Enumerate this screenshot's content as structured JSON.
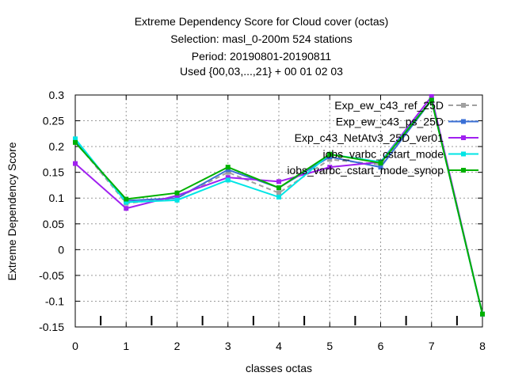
{
  "chart_data": {
    "type": "line",
    "title_lines": [
      "Extreme Dependency Score  for Cloud cover (octas)",
      "Selection: masl_0-200m    524 stations",
      "Period: 20190801-20190811",
      "Used {00,03,...,21} + 00 01 02 03"
    ],
    "xlabel": "classes octas",
    "ylabel": "Extreme Dependency Score",
    "x": [
      0,
      1,
      2,
      3,
      4,
      5,
      6,
      7,
      8
    ],
    "xlim": [
      0,
      8
    ],
    "ylim": [
      -0.15,
      0.3
    ],
    "yticks": [
      -0.15,
      -0.1,
      -0.05,
      0,
      0.05,
      0.1,
      0.15,
      0.2,
      0.25,
      0.3
    ],
    "ytick_labels": [
      "-0.15",
      "-0.1",
      "-0.05",
      "0",
      "0.05",
      "0.1",
      "0.15",
      "0.2",
      "0.25",
      "0.3"
    ],
    "xtick_labels": [
      "0",
      "1",
      "2",
      "3",
      "4",
      "5",
      "6",
      "7",
      "8"
    ],
    "grid": true,
    "legend_position": "top-right",
    "series": [
      {
        "name": "Exp_ew_c43_ref_25D",
        "color": "#a0a0a0",
        "dashed": true,
        "values": [
          0.21,
          0.09,
          0.1,
          0.15,
          0.11,
          0.175,
          0.165,
          0.29,
          -0.125
        ]
      },
      {
        "name": "Exp_ew_c43_ps_25D",
        "color": "#3a6fd6",
        "dashed": false,
        "values": [
          0.21,
          0.095,
          0.1,
          0.155,
          0.12,
          0.18,
          0.16,
          0.29,
          -0.125
        ]
      },
      {
        "name": "Exp_c43_NetAtv3_25D_ver01",
        "color": "#a020f0",
        "dashed": false,
        "values": [
          0.167,
          0.08,
          0.105,
          0.14,
          0.132,
          0.16,
          0.17,
          0.297,
          -0.125
        ]
      },
      {
        "name": "iobs_varbc_cstart_mode",
        "color": "#00e5e5",
        "dashed": false,
        "values": [
          0.215,
          0.092,
          0.096,
          0.135,
          0.102,
          0.185,
          0.17,
          0.29,
          -0.125
        ]
      },
      {
        "name": "iobs_varbc_cstart_mode_synop",
        "color": "#00b000",
        "dashed": false,
        "values": [
          0.208,
          0.098,
          0.11,
          0.16,
          0.12,
          0.185,
          0.168,
          0.29,
          -0.125
        ]
      }
    ]
  }
}
